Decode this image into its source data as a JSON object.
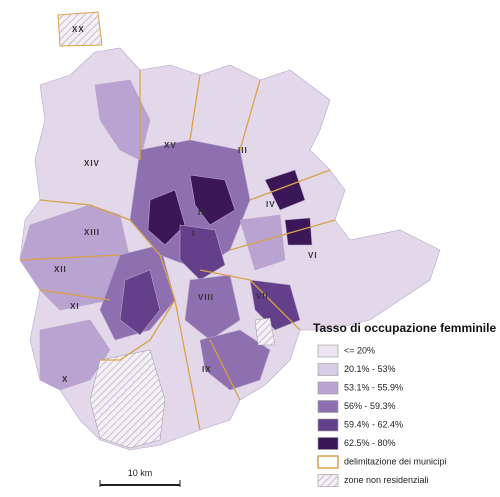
{
  "map": {
    "municipi": [
      "XX",
      "XV",
      "III",
      "XIV",
      "IV",
      "II",
      "XIII",
      "I",
      "VI",
      "XII",
      "XI",
      "VIII",
      "VII",
      "X",
      "IX"
    ]
  },
  "legend": {
    "title": "Tasso di occupazione femminile",
    "items": [
      {
        "label": "<= 20%",
        "color": "#ece6f2"
      },
      {
        "label": "20.1% - 53%",
        "color": "#d8cce6"
      },
      {
        "label": "53.1% - 55.9%",
        "color": "#b9a3d0"
      },
      {
        "label": "56% - 59.3%",
        "color": "#8e70b0"
      },
      {
        "label": "59.4% - 62.4%",
        "color": "#65408a"
      },
      {
        "label": "62.5% - 80%",
        "color": "#3b1757"
      },
      {
        "label": "delimitazione dei municipi",
        "color": "border"
      },
      {
        "label": "zone non residenziali",
        "color": "hatch"
      }
    ]
  },
  "scale_bar": {
    "label": "10 km"
  }
}
